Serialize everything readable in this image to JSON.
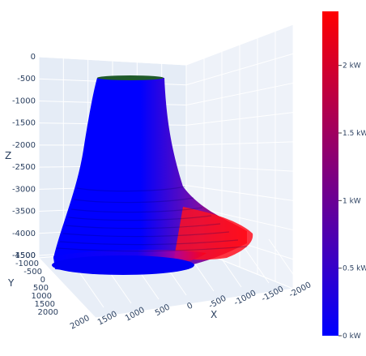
{
  "chart_data": {
    "type": "surface3d",
    "axes": {
      "x": {
        "label": "X",
        "ticks": [
          "2000",
          "1500",
          "1000",
          "500",
          "0",
          "-500",
          "-1000",
          "-1500",
          "-2000"
        ]
      },
      "y": {
        "label": "Y",
        "ticks": [
          "-1500",
          "-1000",
          "-500",
          "0",
          "500",
          "1000",
          "1500",
          "2000"
        ]
      },
      "z": {
        "label": "Z",
        "ticks": [
          "0",
          "-500",
          "-1000",
          "-1500",
          "-2000",
          "-2500",
          "-3000",
          "-3500",
          "-4000",
          "-4500"
        ],
        "range": [
          -4500,
          0
        ]
      }
    },
    "colorbar": {
      "ticks": [
        "0 kW",
        "0.5 kW",
        "1 kW",
        "1.5 kW",
        "2 kW"
      ],
      "range_kw": [
        0,
        2.4
      ],
      "colors": {
        "low": "#0000ff",
        "high": "#ff0000"
      }
    },
    "surface": {
      "description_free": true,
      "top_depth": -500,
      "bottom_depth": -4500,
      "hot_side": "-x"
    },
    "grid": true
  }
}
